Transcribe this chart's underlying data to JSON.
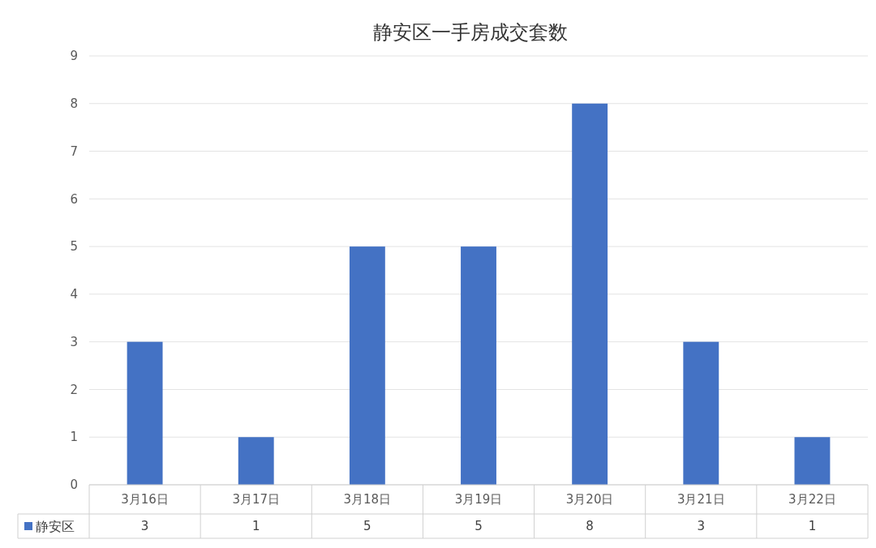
{
  "chart_data": {
    "type": "bar",
    "title": "静安区一手房成交套数",
    "categories": [
      "3月16日",
      "3月17日",
      "3月18日",
      "3月19日",
      "3月20日",
      "3月21日",
      "3月22日"
    ],
    "series": [
      {
        "name": "静安区",
        "color": "#4472c4",
        "values": [
          3,
          1,
          5,
          5,
          8,
          3,
          1
        ]
      }
    ],
    "ylim": [
      0,
      9
    ],
    "yticks": [
      0,
      1,
      2,
      3,
      4,
      5,
      6,
      7,
      8,
      9
    ],
    "grid": "y",
    "legend": "bottom",
    "data_labels": true
  }
}
